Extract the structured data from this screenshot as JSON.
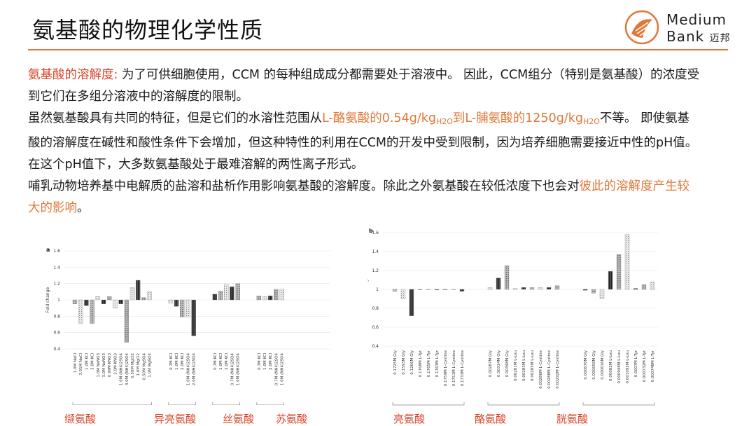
{
  "title": "氨基酸的物理化学性质",
  "logo": {
    "line1": "Medium",
    "line2": "Bank",
    "line2_cn": "迈邦",
    "accent": "#e0783a"
  },
  "paragraphs": {
    "p1_label": "氨基酸的溶解度",
    "p1_colon": ":",
    "p1_text": " 为了可供细胞使用，CCM 的每种组成成分都需要处于溶液中。 因此，CCM组分（特别是氨基酸）的浓度受到它们在多组分溶液中的溶解度的限制。",
    "p2_start": "虽然氨基酸具有共同的特征，但是它们的水溶性范围从",
    "p2_hl1": "L-酪氨酸的0.54g/kg",
    "p2_sub1": "H2O",
    "p2_hl2": "到L-脯氨酸的1250g/kg",
    "p2_sub2": "H2O",
    "p2_end": "不等。 即使氨基酸的溶解度在碱性和酸性条件下会增加，但这种特性的利用在CCM的开发中受到限制，因为培养细胞需要接近中性的pH值。在这个pH值下，大多数氨基酸处于最难溶解的两性离子形式。",
    "p3_start": "哺乳动物培养基中电解质的盐溶和盐析作用影响氨基酸的溶解度。除此之外氨基酸在较低浓度下也会对",
    "p3_hl": "彼此的溶解度产生较大的影响",
    "p3_end": "。"
  },
  "chart_data": [
    {
      "panel": "a",
      "type": "bar",
      "ylabel": "Fold change",
      "ylim": [
        0.4,
        1.6
      ],
      "yticks": [
        0.4,
        0.6,
        0.8,
        1,
        1.2,
        1.4,
        1.6
      ],
      "groups": [
        {
          "name": "L-Val",
          "categories": [
            "1.0M NaCl",
            "3.01M NaCl",
            "1.0M KCl",
            "3.0M KCl",
            "1.0M NaNO3",
            "3.0M NaNO3",
            "0.99M KNO3",
            "3.0M KNO3",
            "1.0M (NH4)2SO4",
            "3.0M (NH4)2SO4",
            "0.50M MgCl2",
            "1.0M MgCl2",
            "0.50M MgSO4",
            "1.0M MgSO4"
          ],
          "values": [
            0.95,
            0.71,
            0.93,
            0.71,
            1.04,
            0.95,
            1.04,
            0.9,
            0.95,
            0.48,
            1.15,
            1.24,
            1.03,
            1.1
          ]
        },
        {
          "name": "L-Ile",
          "categories": [
            "0.7M KCl",
            "1.0M KCl",
            "2.0M KCl",
            "1.0M (NH4)2SO4",
            "2.0M (NH4)2SO4"
          ],
          "values": [
            0.96,
            0.92,
            0.79,
            0.79,
            0.56
          ]
        },
        {
          "name": "L-Ser",
          "categories": [
            "0.7M KCl",
            "1.0M KCl",
            "2.0M KCl",
            "0.7M (NH4)2SO4",
            "1.0M (NH4)2SO4"
          ],
          "values": [
            1.07,
            1.11,
            1.19,
            1.16,
            1.2
          ]
        },
        {
          "name": "L-Thr",
          "categories": [
            "0.7M KCl",
            "1.0M KCl",
            "2.0M KCl",
            "0.7M (NH4)2SO4",
            "1.0M (NH4)2SO4"
          ],
          "values": [
            1.05,
            1.04,
            1.05,
            1.13,
            1.13
          ]
        }
      ]
    },
    {
      "panel": "b",
      "type": "bar",
      "ylabel": "Fold change",
      "ylim": [
        0.4,
        1.6
      ],
      "yticks": [
        0.4,
        0.6,
        0.8,
        1,
        1.2,
        1.4,
        1.6
      ],
      "groups": [
        {
          "name": "L-Leu",
          "categories": [
            "0.1725M Gly",
            "0.1593M Gly",
            "0.1266M Gly",
            "0.1768M L-Tyr",
            "0.1765M L-Tyr",
            "0.1763M L-Tyr",
            "0.1759M L-Cystine",
            "0.1751M L-Cystine",
            "0.1733M L-Cystine"
          ],
          "values": [
            0.98,
            0.9,
            0.72,
            1.0,
            1.0,
            1.0,
            1.0,
            1.0,
            0.98
          ]
        },
        {
          "name": "L-Tyr",
          "categories": [
            "0.00287M Gly",
            "0.00314M Gly",
            "0.00348M Gly",
            "0.00281M L-Leu",
            "0.00283M L-Leu",
            "0.00285M L-Leu",
            "0.00286M L-Cystine",
            "0.00288M L-Cystine",
            "0.00292M L-Cystine"
          ],
          "values": [
            1.02,
            1.12,
            1.25,
            1.01,
            1.02,
            1.02,
            1.02,
            1.02,
            1.04
          ]
        },
        {
          "name": "L-Cystine",
          "categories": [
            "0.000676M Gly",
            "0.000658M Gly",
            "0.000616M Gly",
            "0.00082M L-Leu",
            "0.000948M L-Leu",
            "0.001092M L-Leu",
            "0.0007M L-Tyr",
            "0.000732M L-Tyr",
            "0.000748M L-Tyr"
          ],
          "values": [
            0.99,
            0.96,
            0.9,
            1.19,
            1.37,
            1.58,
            1.01,
            1.05,
            1.08
          ]
        }
      ]
    }
  ],
  "cn_labels": [
    "缬氨酸",
    "异亮氨酸",
    "丝氨酸",
    "苏氨酸",
    "亮氨酸",
    "酪氨酸",
    "胱氨酸"
  ]
}
